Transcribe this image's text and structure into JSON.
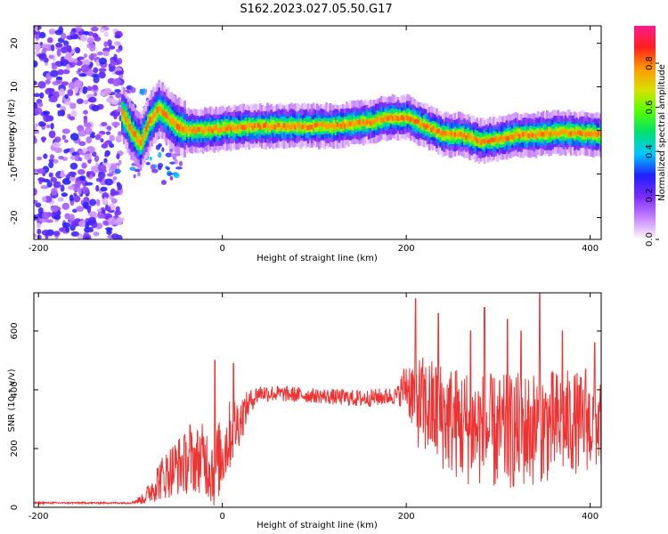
{
  "title": "S162.2023.027.05.50.G17",
  "chart_data": [
    {
      "type": "heatmap",
      "ylabel": "Frequency (Hz)",
      "xlabel": "Height of straight line (km)",
      "xlim": [
        -205,
        412
      ],
      "ylim": [
        -25,
        24
      ],
      "x_ticks": [
        "-200",
        "0",
        "200",
        "400"
      ],
      "y_ticks": [
        "-20",
        "-10",
        "0",
        "10",
        "20"
      ],
      "colorbar": {
        "label": "Normalized spectral amplitude",
        "ticks": [
          "0.0",
          "0.2",
          "0.4",
          "0.6",
          "0.8"
        ],
        "range": [
          0,
          0.97
        ],
        "colors": [
          "#ffffff",
          "#c884ff",
          "#7b2cff",
          "#2020ff",
          "#00c8ff",
          "#00e070",
          "#55ff00",
          "#d8e000",
          "#ff9900",
          "#ff1f1f",
          "#ff1a8c"
        ]
      },
      "noise_region": {
        "x_range": [
          -205,
          -110
        ],
        "y_range": [
          -25,
          24
        ],
        "amplitude": 0.25
      },
      "ridge": {
        "x": [
          -110,
          -100,
          -90,
          -80,
          -70,
          -60,
          -50,
          -40,
          -30,
          -20,
          0,
          40,
          80,
          120,
          160,
          180,
          200,
          220,
          240,
          260,
          280,
          300,
          320,
          340,
          360,
          380,
          412
        ],
        "y": [
          4,
          0,
          -3,
          2,
          5,
          3,
          1,
          0,
          0,
          0,
          0.5,
          1,
          1,
          1,
          2,
          3,
          3,
          1,
          -1,
          -1,
          -2.5,
          -2,
          -1,
          -1,
          -0.5,
          -0.5,
          -1
        ],
        "peak_amplitude": 0.9
      }
    },
    {
      "type": "line",
      "xlabel": "Height of straight line (km)",
      "ylabel": "SNR (10 * v/v)",
      "xlim": [
        -205,
        412
      ],
      "ylim": [
        0,
        730
      ],
      "x_ticks": [
        "-200",
        "0",
        "200",
        "400"
      ],
      "y_ticks": [
        "0",
        "200",
        "400",
        "600"
      ],
      "color": "#ee3333",
      "series_profile": {
        "x": [
          -205,
          -100,
          -85,
          -70,
          -50,
          -20,
          -10,
          0,
          10,
          20,
          30,
          40,
          100,
          150,
          190,
          200,
          215,
          260,
          300,
          340,
          380,
          412
        ],
        "y": [
          15,
          15,
          30,
          90,
          140,
          170,
          130,
          180,
          260,
          300,
          360,
          390,
          380,
          370,
          380,
          420,
          350,
          280,
          250,
          270,
          290,
          280
        ],
        "noise": [
          3,
          3,
          20,
          70,
          100,
          120,
          140,
          130,
          120,
          80,
          40,
          30,
          25,
          30,
          30,
          90,
          170,
          200,
          200,
          200,
          180,
          150
        ],
        "peaks": [
          {
            "x": -35,
            "y": 280
          },
          {
            "x": -8,
            "y": 500
          },
          {
            "x": 12,
            "y": 490
          },
          {
            "x": 210,
            "y": 710
          },
          {
            "x": 235,
            "y": 660
          },
          {
            "x": 270,
            "y": 600
          },
          {
            "x": 285,
            "y": 680
          },
          {
            "x": 310,
            "y": 640
          },
          {
            "x": 325,
            "y": 600
          },
          {
            "x": 345,
            "y": 730
          },
          {
            "x": 370,
            "y": 600
          },
          {
            "x": 395,
            "y": 470
          },
          {
            "x": 405,
            "y": 560
          }
        ]
      }
    }
  ]
}
